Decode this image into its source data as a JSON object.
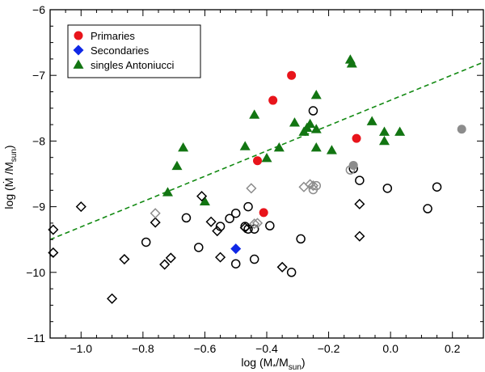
{
  "chart_data": {
    "type": "scatter",
    "title": "",
    "xlabel": {
      "main": "log (M",
      "sub1": "*",
      "mid": "/M",
      "sub2": "sun",
      "end": ")"
    },
    "ylabel": {
      "main": "log (",
      "dot": "Ṁ",
      "mid": " /M",
      "sub": "sun",
      "end": ")"
    },
    "xlim": [
      -1.1,
      0.3
    ],
    "ylim": [
      -11,
      -6
    ],
    "x_ticks": [
      -1.0,
      -0.8,
      -0.6,
      -0.4,
      -0.2,
      0.0,
      0.2
    ],
    "x_tick_labels": [
      "−1.0",
      "−0.8",
      "−0.6",
      "−0.4",
      "−0.2",
      "0.0",
      "0.2"
    ],
    "y_ticks": [
      -11,
      -10,
      -9,
      -8,
      -7,
      -6
    ],
    "y_tick_labels": [
      "−11",
      "−10",
      "−9",
      "−8",
      "−7",
      "−6"
    ],
    "legend_position": "top-left",
    "series": [
      {
        "name": "Primaries",
        "marker": "filled-circle",
        "color": "#e8141b",
        "in_legend": true,
        "points": [
          [
            -0.32,
            -7.0
          ],
          [
            -0.38,
            -7.38
          ],
          [
            -0.43,
            -8.3
          ],
          [
            -0.11,
            -7.96
          ],
          [
            -0.41,
            -9.09
          ]
        ]
      },
      {
        "name": "Secondaries",
        "marker": "filled-diamond",
        "color": "#1028e6",
        "in_legend": true,
        "points": [
          [
            -0.5,
            -9.64
          ]
        ]
      },
      {
        "name": "singles Antoniucci",
        "marker": "filled-triangle",
        "color": "#127512",
        "in_legend": true,
        "points": [
          [
            -0.13,
            -6.76
          ],
          [
            -0.125,
            -6.82
          ],
          [
            -0.24,
            -7.3
          ],
          [
            -0.31,
            -7.72
          ],
          [
            -0.26,
            -7.74
          ],
          [
            -0.27,
            -7.8
          ],
          [
            -0.28,
            -7.86
          ],
          [
            -0.24,
            -7.82
          ],
          [
            -0.44,
            -7.6
          ],
          [
            -0.36,
            -8.1
          ],
          [
            -0.47,
            -8.08
          ],
          [
            -0.24,
            -8.1
          ],
          [
            -0.19,
            -8.14
          ],
          [
            -0.06,
            -7.7
          ],
          [
            -0.02,
            -7.86
          ],
          [
            0.03,
            -7.86
          ],
          [
            -0.02,
            -8.0
          ],
          [
            -0.67,
            -8.1
          ],
          [
            -0.69,
            -8.38
          ],
          [
            -0.72,
            -8.78
          ],
          [
            -0.6,
            -8.92
          ],
          [
            -0.4,
            -8.26
          ]
        ]
      },
      {
        "name": "Open circles",
        "marker": "open-circle",
        "color": "#000000",
        "in_legend": false,
        "points": [
          [
            -0.25,
            -7.54
          ],
          [
            -0.12,
            -8.42
          ],
          [
            -0.1,
            -8.6
          ],
          [
            -0.01,
            -8.72
          ],
          [
            0.15,
            -8.7
          ],
          [
            0.12,
            -9.03
          ],
          [
            -0.66,
            -9.17
          ],
          [
            -0.55,
            -9.3
          ],
          [
            -0.52,
            -9.18
          ],
          [
            -0.5,
            -9.1
          ],
          [
            -0.46,
            -9.0
          ],
          [
            -0.46,
            -9.34
          ],
          [
            -0.44,
            -9.34
          ],
          [
            -0.39,
            -9.29
          ],
          [
            -0.79,
            -9.54
          ],
          [
            -0.62,
            -9.62
          ],
          [
            -0.44,
            -9.8
          ],
          [
            -0.5,
            -9.87
          ],
          [
            -0.32,
            -10.0
          ],
          [
            -0.29,
            -9.49
          ],
          [
            -0.47,
            -9.3
          ]
        ]
      },
      {
        "name": "Open diamonds",
        "marker": "open-diamond",
        "color": "#000000",
        "in_legend": false,
        "points": [
          [
            -1.0,
            -9.0
          ],
          [
            -1.09,
            -9.35
          ],
          [
            -1.09,
            -9.7
          ],
          [
            -0.61,
            -8.84
          ],
          [
            -0.76,
            -9.24
          ],
          [
            -0.58,
            -9.23
          ],
          [
            -0.56,
            -9.37
          ],
          [
            -0.86,
            -9.8
          ],
          [
            -0.73,
            -9.88
          ],
          [
            -0.71,
            -9.78
          ],
          [
            -0.55,
            -9.77
          ],
          [
            -0.9,
            -10.4
          ],
          [
            -0.1,
            -8.96
          ],
          [
            -0.1,
            -9.45
          ],
          [
            -0.35,
            -9.92
          ],
          [
            -0.47,
            -9.32
          ]
        ]
      },
      {
        "name": "Gray open diamonds",
        "marker": "open-diamond",
        "color": "#8c8c8c",
        "in_legend": false,
        "points": [
          [
            -0.45,
            -8.72
          ],
          [
            -0.28,
            -8.7
          ],
          [
            -0.26,
            -8.66
          ],
          [
            -0.25,
            -8.68
          ],
          [
            -0.76,
            -9.1
          ],
          [
            -0.43,
            -9.25
          ],
          [
            -0.44,
            -9.26
          ]
        ]
      },
      {
        "name": "Gray open circles",
        "marker": "open-circle",
        "color": "#8c8c8c",
        "in_legend": false,
        "points": [
          [
            -0.25,
            -8.74
          ],
          [
            -0.24,
            -8.68
          ],
          [
            -0.13,
            -8.44
          ]
        ]
      },
      {
        "name": "Gray filled circles",
        "marker": "filled-circle",
        "color": "#8c8c8c",
        "in_legend": false,
        "points": [
          [
            0.23,
            -7.82
          ],
          [
            -0.12,
            -8.37
          ]
        ]
      }
    ],
    "trend_line": {
      "style": "dashed",
      "color": "#138a13",
      "points": [
        [
          -1.1,
          -9.5
        ],
        [
          0.3,
          -6.8
        ]
      ]
    }
  }
}
